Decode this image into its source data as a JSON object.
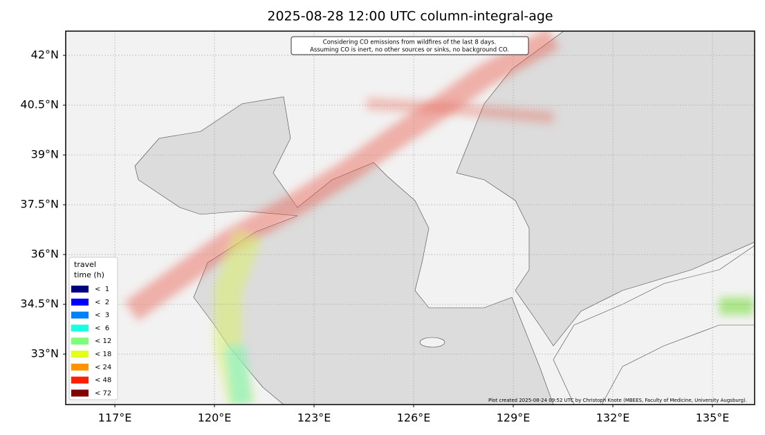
{
  "title": "2025-08-28 12:00 UTC column-integral-age",
  "annotation": [
    "Considering CO emissions from wildfires of the last 8 days.",
    "Assuming CO is inert, no other sources or sinks, no background CO."
  ],
  "credit": "Plot created 2025-08-24 09:52 UTC by Christoph Knote (MBEES, Faculty of Medicine, University Augsburg).",
  "map": {
    "xlim": [
      115.52,
      136.27
    ],
    "ylim": [
      31.48,
      42.73
    ],
    "grid": true,
    "xticks": [
      {
        "value": 117,
        "label": "117°E"
      },
      {
        "value": 120,
        "label": "120°E"
      },
      {
        "value": 123,
        "label": "123°E"
      },
      {
        "value": 126,
        "label": "126°E"
      },
      {
        "value": 129,
        "label": "129°E"
      },
      {
        "value": 132,
        "label": "132°E"
      },
      {
        "value": 135,
        "label": "135°E"
      }
    ],
    "yticks": [
      {
        "value": 33,
        "label": "33°N"
      },
      {
        "value": 34.5,
        "label": "34.5°N"
      },
      {
        "value": 36,
        "label": "36°N"
      },
      {
        "value": 37.5,
        "label": "37.5°N"
      },
      {
        "value": 39,
        "label": "39°N"
      },
      {
        "value": 40.5,
        "label": "40.5°N"
      },
      {
        "value": 42,
        "label": "42°N"
      }
    ]
  },
  "legend": {
    "title": [
      "travel",
      "time (h)"
    ],
    "entries": [
      {
        "label": "<  1",
        "color": "#000080"
      },
      {
        "label": "<  2",
        "color": "#0000ff"
      },
      {
        "label": "<  3",
        "color": "#0080ff"
      },
      {
        "label": "<  6",
        "color": "#1affe0"
      },
      {
        "label": "< 12",
        "color": "#7dff7a"
      },
      {
        "label": "< 18",
        "color": "#e4ff1a"
      },
      {
        "label": "< 24",
        "color": "#ff9400"
      },
      {
        "label": "< 48",
        "color": "#ff1e00"
      },
      {
        "label": "< 72",
        "color": "#800000"
      }
    ]
  }
}
